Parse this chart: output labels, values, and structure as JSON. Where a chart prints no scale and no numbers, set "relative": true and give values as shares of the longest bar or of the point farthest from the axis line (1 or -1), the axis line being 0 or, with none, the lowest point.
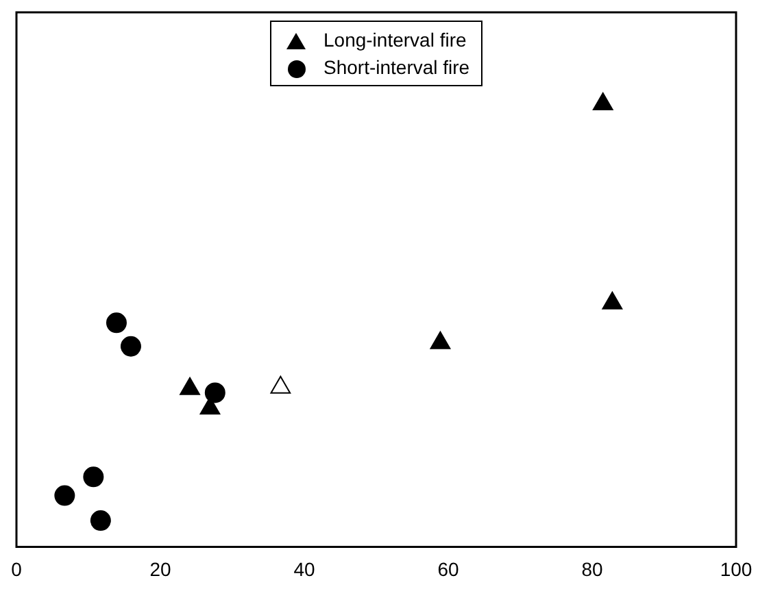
{
  "chart_data": {
    "type": "scatter",
    "relative": true,
    "xlim": [
      0,
      100
    ],
    "xticks": [
      0,
      20,
      40,
      60,
      80,
      100
    ],
    "tick_labels": "x",
    "legend": "top",
    "grid": false,
    "series": [
      {
        "name": "Long-interval fire",
        "color": "#000000",
        "marker": "triangle",
        "x": [
          81.5,
          82.8,
          58.9,
          24.1,
          26.9
        ],
        "values": [
          1.0,
          0.553,
          0.464,
          0.361,
          0.317
        ]
      },
      {
        "name": "Short-interval fire",
        "color": "#000000",
        "marker": "circle",
        "x": [
          13.9,
          15.9,
          27.6,
          10.7,
          6.7,
          11.7
        ],
        "values": [
          0.503,
          0.45,
          0.346,
          0.157,
          0.115,
          0.059
        ]
      },
      {
        "color": "#ffffff",
        "marker": "triangle",
        "x": [
          36.7
        ],
        "values": [
          0.364
        ]
      }
    ]
  }
}
